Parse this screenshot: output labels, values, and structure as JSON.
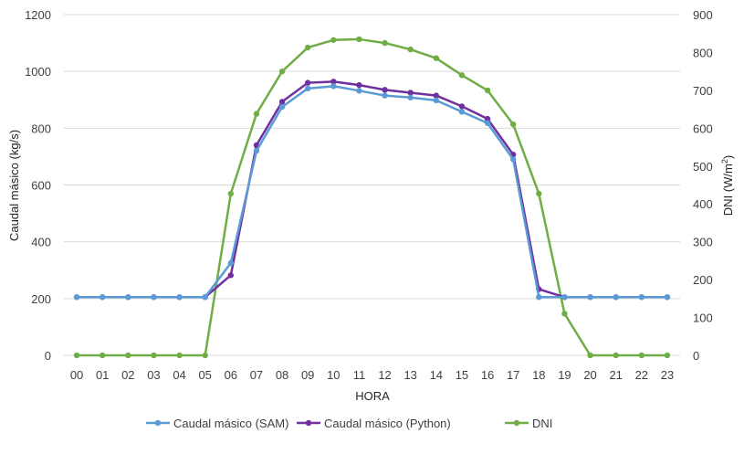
{
  "chart_data": {
    "type": "line",
    "x": [
      "00",
      "01",
      "02",
      "03",
      "04",
      "05",
      "06",
      "07",
      "08",
      "09",
      "10",
      "11",
      "12",
      "13",
      "14",
      "15",
      "16",
      "17",
      "18",
      "19",
      "20",
      "21",
      "22",
      "23"
    ],
    "xlabel": "HORA",
    "ylabel_left": "Caudal másico (kg/s)",
    "ylabel_right_main": "DNI (W/m",
    "ylabel_right_sup": "2",
    "ylabel_right_end": ")",
    "ylim_left": [
      0,
      1200
    ],
    "ylim_right": [
      0,
      900
    ],
    "yticks_left": [
      "0",
      "200",
      "400",
      "600",
      "800",
      "1000",
      "1200"
    ],
    "yticks_right": [
      "0",
      "100",
      "200",
      "300",
      "400",
      "500",
      "600",
      "700",
      "800",
      "900"
    ],
    "grid": true,
    "legend_position": "bottom",
    "series": [
      {
        "name": "Caudal másico (SAM)",
        "axis": "left",
        "color": "#5b9bd5",
        "values": [
          205,
          205,
          205,
          205,
          205,
          205,
          325,
          720,
          875,
          940,
          948,
          932,
          915,
          908,
          898,
          858,
          818,
          690,
          205,
          205,
          205,
          205,
          205,
          205
        ]
      },
      {
        "name": "Caudal másico (Python)",
        "axis": "left",
        "color": "#7030a0",
        "values": [
          205,
          205,
          205,
          205,
          205,
          205,
          282,
          740,
          893,
          960,
          964,
          952,
          935,
          925,
          915,
          877,
          833,
          707,
          233,
          205,
          205,
          205,
          205,
          205
        ]
      },
      {
        "name": "DNI",
        "axis": "right",
        "color": "#70ad47",
        "values": [
          0,
          0,
          0,
          0,
          0,
          0,
          427,
          638,
          750,
          813,
          833,
          835,
          825,
          808,
          785,
          740,
          700,
          610,
          427,
          110,
          0,
          0,
          0,
          0
        ]
      }
    ]
  }
}
